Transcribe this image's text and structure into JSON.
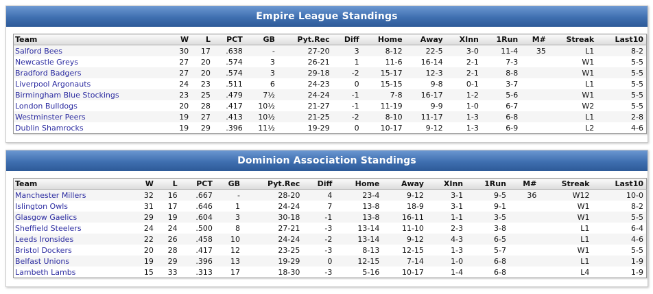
{
  "leagues": [
    {
      "title": "Empire League Standings",
      "columns": [
        "Team",
        "W",
        "L",
        "PCT",
        "GB",
        "Pyt.Rec",
        "Diff",
        "Home",
        "Away",
        "XInn",
        "1Run",
        "M#",
        "Streak",
        "Last10"
      ],
      "rows": [
        [
          "Salford Bees",
          "30",
          "17",
          ".638",
          "-",
          "27-20",
          "3",
          "8-12",
          "22-5",
          "3-0",
          "11-4",
          "35",
          "L1",
          "8-2"
        ],
        [
          "Newcastle Greys",
          "27",
          "20",
          ".574",
          "3",
          "26-21",
          "1",
          "11-6",
          "16-14",
          "2-1",
          "7-3",
          null,
          "W1",
          "5-5"
        ],
        [
          "Bradford Badgers",
          "27",
          "20",
          ".574",
          "3",
          "29-18",
          "-2",
          "15-17",
          "12-3",
          "2-1",
          "8-8",
          null,
          "W1",
          "5-5"
        ],
        [
          "Liverpool Argonauts",
          "24",
          "23",
          ".511",
          "6",
          "24-23",
          "0",
          "15-15",
          "9-8",
          "0-1",
          "3-7",
          null,
          "L1",
          "5-5"
        ],
        [
          "Birmingham Blue Stockings",
          "23",
          "25",
          ".479",
          "7½",
          "24-24",
          "-1",
          "7-8",
          "16-17",
          "1-2",
          "5-6",
          null,
          "W1",
          "5-5"
        ],
        [
          "London Bulldogs",
          "20",
          "28",
          ".417",
          "10½",
          "21-27",
          "-1",
          "11-19",
          "9-9",
          "1-0",
          "6-7",
          null,
          "W2",
          "5-5"
        ],
        [
          "Westminster Peers",
          "19",
          "27",
          ".413",
          "10½",
          "21-25",
          "-2",
          "8-10",
          "11-17",
          "1-3",
          "6-8",
          null,
          "L1",
          "2-8"
        ],
        [
          "Dublin Shamrocks",
          "19",
          "29",
          ".396",
          "11½",
          "19-29",
          "0",
          "10-17",
          "9-12",
          "1-3",
          "6-9",
          null,
          "L2",
          "4-6"
        ]
      ]
    },
    {
      "title": "Dominion Association Standings",
      "columns": [
        "Team",
        "W",
        "L",
        "PCT",
        "GB",
        "Pyt.Rec",
        "Diff",
        "Home",
        "Away",
        "XInn",
        "1Run",
        "M#",
        "Streak",
        "Last10"
      ],
      "rows": [
        [
          "Manchester Millers",
          "32",
          "16",
          ".667",
          "-",
          "28-20",
          "4",
          "23-4",
          "9-12",
          "3-1",
          "9-5",
          "36",
          "W12",
          "10-0"
        ],
        [
          "Islington Owls",
          "31",
          "17",
          ".646",
          "1",
          "24-24",
          "7",
          "13-8",
          "18-9",
          "3-1",
          "9-1",
          null,
          "W1",
          "8-2"
        ],
        [
          "Glasgow Gaelics",
          "29",
          "19",
          ".604",
          "3",
          "30-18",
          "-1",
          "13-8",
          "16-11",
          "1-1",
          "3-5",
          null,
          "W1",
          "5-5"
        ],
        [
          "Sheffield Steelers",
          "24",
          "24",
          ".500",
          "8",
          "27-21",
          "-3",
          "13-14",
          "11-10",
          "2-3",
          "3-8",
          null,
          "L1",
          "6-4"
        ],
        [
          "Leeds Ironsides",
          "22",
          "26",
          ".458",
          "10",
          "24-24",
          "-2",
          "13-14",
          "9-12",
          "4-3",
          "6-5",
          null,
          "L1",
          "4-6"
        ],
        [
          "Bristol Dockers",
          "20",
          "28",
          ".417",
          "12",
          "23-25",
          "-3",
          "8-13",
          "12-15",
          "1-3",
          "5-7",
          null,
          "W1",
          "5-5"
        ],
        [
          "Belfast Unions",
          "19",
          "29",
          ".396",
          "13",
          "19-29",
          "0",
          "12-15",
          "7-14",
          "1-0",
          "6-8",
          null,
          "L1",
          "1-9"
        ],
        [
          "Lambeth Lambs",
          "15",
          "33",
          ".313",
          "17",
          "18-30",
          "-3",
          "5-16",
          "10-17",
          "1-4",
          "6-8",
          null,
          "L4",
          "1-9"
        ]
      ]
    }
  ]
}
